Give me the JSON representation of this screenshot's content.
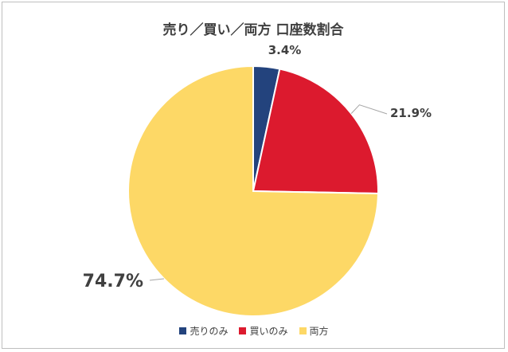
{
  "chart_data": {
    "type": "pie",
    "title": "売り／買い／両方 口座数割合",
    "categories": [
      "売りのみ",
      "買いのみ",
      "両方"
    ],
    "values": [
      3.4,
      21.9,
      74.7
    ],
    "labels": [
      "3.4%",
      "21.9%",
      "74.7%"
    ],
    "colors": [
      "#23437d",
      "#dc1a2e",
      "#fdd866"
    ],
    "legend_position": "bottom",
    "start_angle_deg": 0,
    "direction": "clockwise"
  }
}
